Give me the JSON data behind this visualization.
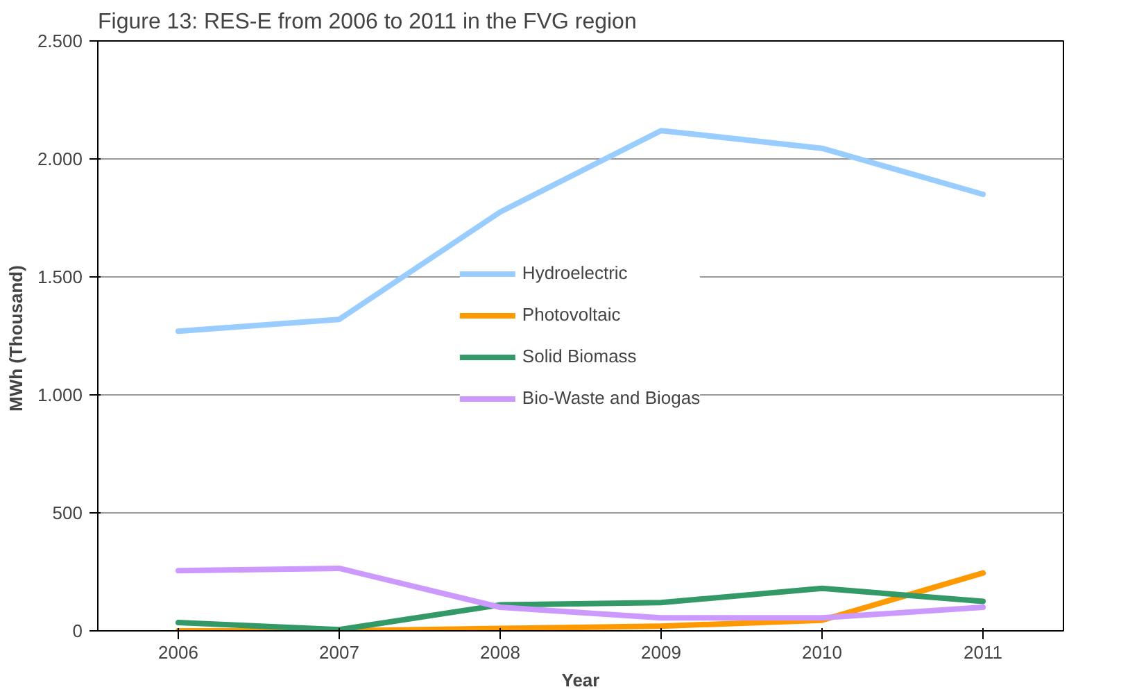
{
  "chart_data": {
    "type": "line",
    "title": "Figure 13: RES-E from 2006 to 2011 in the FVG region",
    "xlabel": "Year",
    "ylabel": "MWh  (Thousand)",
    "categories": [
      "2006",
      "2007",
      "2008",
      "2009",
      "2010",
      "2011"
    ],
    "series": [
      {
        "name": "Hydroelectric",
        "color": "#99ccff",
        "values": [
          1270,
          1320,
          1775,
          2120,
          2045,
          1850
        ]
      },
      {
        "name": "Photovoltaic",
        "color": "#ff9900",
        "values": [
          0,
          0,
          10,
          20,
          45,
          245
        ]
      },
      {
        "name": "Solid Biomass",
        "color": "#339966",
        "values": [
          35,
          5,
          110,
          120,
          180,
          125
        ]
      },
      {
        "name": "Bio-Waste and Biogas",
        "color": "#cc99ff",
        "values": [
          255,
          265,
          100,
          55,
          55,
          100
        ]
      }
    ],
    "ylim": [
      0,
      2500
    ],
    "yticks": [
      {
        "value": 0,
        "label": "0"
      },
      {
        "value": 500,
        "label": "500"
      },
      {
        "value": 1000,
        "label": "1.000"
      },
      {
        "value": 1500,
        "label": "1.500"
      },
      {
        "value": 2000,
        "label": "2.000"
      },
      {
        "value": 2500,
        "label": "2.500"
      }
    ],
    "grid": "y",
    "legend": "center",
    "marker": "none",
    "line_style": "solid"
  }
}
